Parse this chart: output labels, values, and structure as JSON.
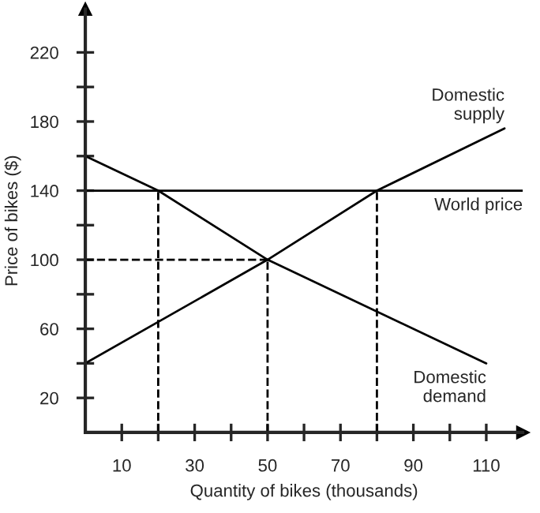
{
  "chart_data": {
    "type": "line",
    "xlabel": "Quantity of bikes (thousands)",
    "ylabel": "Price of bikes ($)",
    "xlim": [
      0,
      120
    ],
    "ylim": [
      0,
      245
    ],
    "xticks": [
      10,
      {
        "value": 20,
        "label": null
      },
      30,
      {
        "value": 40,
        "label": null
      },
      50,
      {
        "value": 60,
        "label": null
      },
      70,
      {
        "value": 80,
        "label": null
      },
      90,
      {
        "value": 100,
        "label": null
      },
      110
    ],
    "yticks": [
      20,
      {
        "value": 40,
        "label": null
      },
      60,
      {
        "value": 80,
        "label": null
      },
      100,
      {
        "value": 120,
        "label": null
      },
      140,
      {
        "value": 160,
        "label": null
      },
      180,
      {
        "value": 200,
        "label": null
      },
      220
    ],
    "grid": false,
    "legend": false,
    "marker": "none",
    "series": [
      {
        "name": "Domestic\nsupply",
        "color": "#000000",
        "x": [
          0,
          50,
          80,
          115
        ],
        "values": [
          40,
          100,
          140,
          176
        ]
      },
      {
        "name": "World price",
        "color": "#000000",
        "x": [
          0,
          120
        ],
        "values": [
          140,
          140
        ]
      },
      {
        "name": "Domestic\ndemand",
        "color": "#000000",
        "x": [
          0,
          20,
          50,
          110
        ],
        "values": [
          160,
          140,
          100,
          40
        ]
      },
      {
        "color": "#000000",
        "line_style": "dashed",
        "x": [
          20,
          20
        ],
        "values": [
          0,
          140
        ]
      },
      {
        "color": "#000000",
        "line_style": "dashed",
        "x": [
          80,
          80
        ],
        "values": [
          0,
          140
        ]
      },
      {
        "color": "#000000",
        "line_style": "dashed",
        "x": [
          50,
          50
        ],
        "values": [
          0,
          100
        ]
      },
      {
        "color": "#000000",
        "line_style": "dashed",
        "x": [
          0,
          50
        ],
        "values": [
          100,
          100
        ]
      }
    ]
  }
}
